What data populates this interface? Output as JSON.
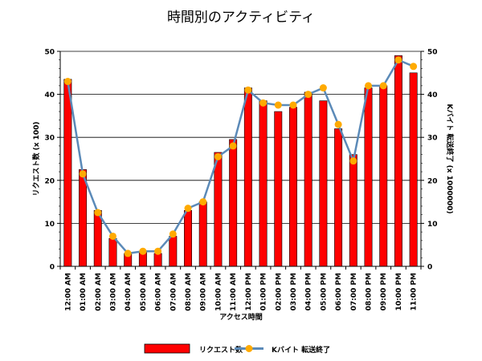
{
  "chart_data": {
    "type": "bar",
    "title": "時間別のアクティビティ",
    "xlabel": "アクセス時間",
    "ylabel": "リクエスト数 (x 100)",
    "y2label": "Kバイト 転送終了 (x 1000000)",
    "ylim": [
      0,
      50
    ],
    "y2lim": [
      0,
      50
    ],
    "yticks": [
      "0",
      "10",
      "20",
      "30",
      "40",
      "50"
    ],
    "y2ticks": [
      "0",
      "10",
      "20",
      "30",
      "40",
      "50"
    ],
    "grid": true,
    "legend_position": "bottom",
    "categories": [
      "12:00 AM",
      "01:00 AM",
      "02:00 AM",
      "03:00 AM",
      "04:00 AM",
      "05:00 AM",
      "06:00 AM",
      "07:00 AM",
      "08:00 AM",
      "09:00 AM",
      "10:00 AM",
      "11:00 AM",
      "12:00 PM",
      "01:00 PM",
      "02:00 PM",
      "03:00 PM",
      "04:00 PM",
      "05:00 PM",
      "06:00 PM",
      "07:00 PM",
      "08:00 PM",
      "09:00 PM",
      "10:00 PM",
      "11:00 PM"
    ],
    "series": [
      {
        "name": "リクエスト数",
        "type": "bar",
        "axis": "left",
        "color": "#ff0000",
        "values": [
          43.5,
          22.5,
          13,
          6.5,
          3,
          3.5,
          3,
          7,
          13,
          15,
          26.5,
          29.5,
          41.5,
          38.5,
          36,
          37,
          40.5,
          38.5,
          32,
          26,
          41.5,
          42,
          49,
          45
        ]
      },
      {
        "name": "Kバイト 転送終了",
        "type": "line",
        "axis": "right",
        "color": "#5b8ab8",
        "marker_color": "#ffaa00",
        "values": [
          43,
          21.5,
          12.5,
          7,
          3,
          3.5,
          3.5,
          7.5,
          13.5,
          15,
          25.5,
          28,
          41,
          38,
          37.5,
          37.5,
          40,
          41.5,
          33,
          24.5,
          42,
          42,
          48,
          46.5
        ]
      }
    ]
  }
}
